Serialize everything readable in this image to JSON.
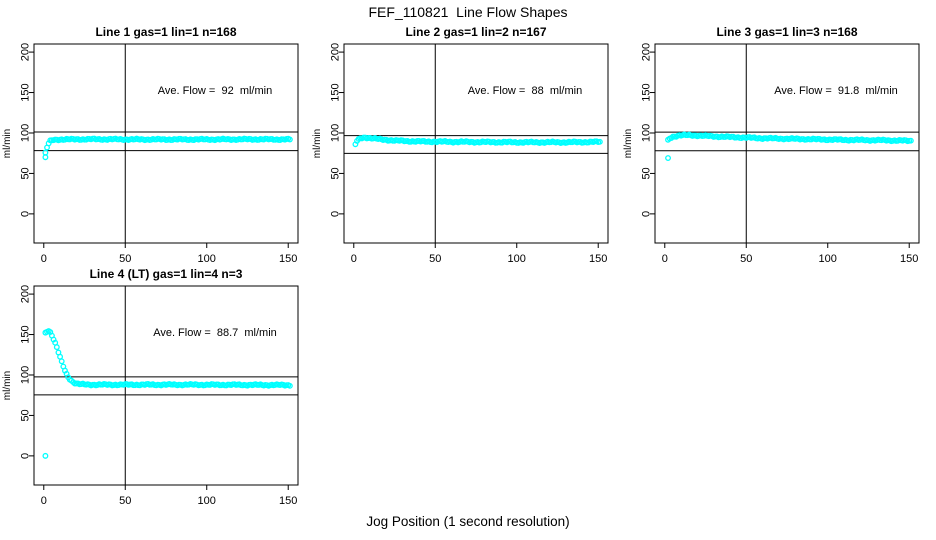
{
  "figure": {
    "title": "FEF_110821  Line Flow Shapes",
    "xlabel": "Jog Position (1 second resolution)",
    "background": "#FFFFFF",
    "point_color": "#00FFFF",
    "line_color": "#000000"
  },
  "chart_data": [
    {
      "type": "scatter",
      "title": "Line 1 gas=1 lin=1 n=168",
      "annotation": "Ave. Flow =  92  ml/min",
      "ave_flow": 92,
      "n": 168,
      "ylabel": "ml/min",
      "x_ticks": [
        0,
        50,
        100,
        150
      ],
      "y_ticks": [
        0,
        50,
        100,
        150,
        200
      ],
      "xlim": [
        -6,
        156
      ],
      "ylim": [
        -36,
        210
      ],
      "vline_x": 50,
      "hlines_y": [
        101.2,
        78.2
      ],
      "x_start": 1,
      "x_end": 151,
      "x_step": 1,
      "profile": [
        [
          1,
          75
        ],
        [
          2,
          82
        ],
        [
          3,
          87
        ],
        [
          4,
          90
        ],
        [
          6,
          91.5
        ],
        [
          10,
          92
        ],
        [
          30,
          92.3
        ],
        [
          60,
          92
        ],
        [
          100,
          92
        ],
        [
          130,
          92.2
        ],
        [
          151,
          92
        ]
      ],
      "outliers": [
        [
          1,
          70
        ]
      ]
    },
    {
      "type": "scatter",
      "title": "Line 2 gas=1 lin=2 n=167",
      "annotation": "Ave. Flow =  88  ml/min",
      "ave_flow": 88,
      "n": 167,
      "ylabel": "ml/min",
      "x_ticks": [
        0,
        50,
        100,
        150
      ],
      "y_ticks": [
        0,
        50,
        100,
        150,
        200
      ],
      "xlim": [
        -6,
        156
      ],
      "ylim": [
        -36,
        210
      ],
      "vline_x": 50,
      "hlines_y": [
        96.8,
        74.8
      ],
      "x_start": 1,
      "x_end": 151,
      "x_step": 1,
      "profile": [
        [
          1,
          86
        ],
        [
          2,
          90
        ],
        [
          4,
          93.5
        ],
        [
          7,
          94.5
        ],
        [
          11,
          93.5
        ],
        [
          17,
          92
        ],
        [
          26,
          90.5
        ],
        [
          40,
          89.5
        ],
        [
          65,
          89
        ],
        [
          100,
          88.5
        ],
        [
          130,
          88.5
        ],
        [
          151,
          89
        ]
      ],
      "outliers": []
    },
    {
      "type": "scatter",
      "title": "Line 3 gas=1 lin=3 n=168",
      "annotation": "Ave. Flow =  91.8  ml/min",
      "ave_flow": 91.8,
      "n": 168,
      "ylabel": "ml/min",
      "x_ticks": [
        0,
        50,
        100,
        150
      ],
      "y_ticks": [
        0,
        50,
        100,
        150,
        200
      ],
      "xlim": [
        -6,
        156
      ],
      "ylim": [
        -36,
        210
      ],
      "vline_x": 50,
      "hlines_y": [
        101.0,
        78.0
      ],
      "x_start": 2,
      "x_end": 151,
      "x_step": 1,
      "profile": [
        [
          2,
          91
        ],
        [
          3,
          93.5
        ],
        [
          5,
          95.5
        ],
        [
          9,
          97
        ],
        [
          15,
          97.3
        ],
        [
          25,
          96.3
        ],
        [
          40,
          95
        ],
        [
          60,
          93.5
        ],
        [
          85,
          92.5
        ],
        [
          110,
          91.5
        ],
        [
          135,
          91
        ],
        [
          151,
          90.3
        ]
      ],
      "outliers": [
        [
          2,
          69
        ]
      ]
    },
    {
      "type": "scatter",
      "title": "Line 4 (LT) gas=1 lin=4 n=3",
      "annotation": "Ave. Flow =  88.7  ml/min",
      "ave_flow": 88.7,
      "n": 3,
      "ylabel": "ml/min",
      "x_ticks": [
        0,
        50,
        100,
        150
      ],
      "y_ticks": [
        0,
        50,
        100,
        150,
        200
      ],
      "xlim": [
        -6,
        156
      ],
      "ylim": [
        -36,
        210
      ],
      "vline_x": 50,
      "hlines_y": [
        97.6,
        75.4
      ],
      "x_start": 1,
      "x_end": 151,
      "x_step": 1,
      "profile": [
        [
          1,
          152
        ],
        [
          2,
          154
        ],
        [
          3,
          155
        ],
        [
          4,
          153
        ],
        [
          5,
          149
        ],
        [
          6,
          144.5
        ],
        [
          7,
          139.5
        ],
        [
          8,
          134
        ],
        [
          9,
          128
        ],
        [
          10,
          122
        ],
        [
          11,
          116
        ],
        [
          12,
          110.5
        ],
        [
          13,
          105.5
        ],
        [
          14,
          101
        ],
        [
          15,
          97.5
        ],
        [
          16,
          95
        ],
        [
          17,
          93
        ],
        [
          18,
          91.5
        ],
        [
          19,
          90.3
        ],
        [
          20,
          89.4
        ],
        [
          22,
          88.6
        ],
        [
          25,
          88.2
        ],
        [
          30,
          88
        ],
        [
          60,
          88
        ],
        [
          90,
          88
        ],
        [
          120,
          87.8
        ],
        [
          151,
          87.5
        ]
      ],
      "outliers": [
        [
          1,
          0
        ]
      ]
    }
  ]
}
